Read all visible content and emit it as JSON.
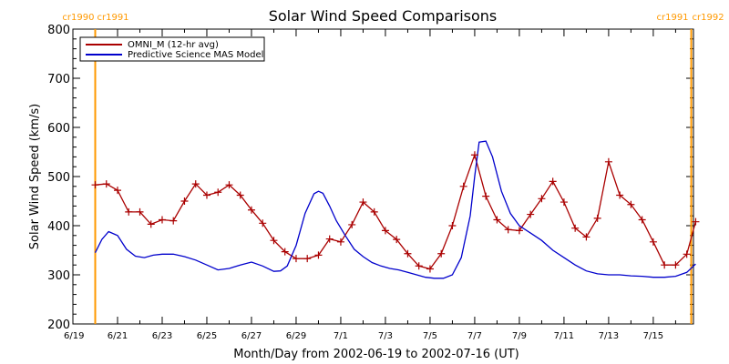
{
  "chart_data": {
    "type": "line",
    "title": "Solar Wind Speed Comparisons",
    "xlabel": "Month/Day from 2002-06-19 to 2002-07-16 (UT)",
    "ylabel": "Solar Wind Speed (km/s)",
    "ylim": [
      200,
      800
    ],
    "xlim": [
      0,
      27.8
    ],
    "yticks": [
      200,
      300,
      400,
      500,
      600,
      700,
      800
    ],
    "xticks": [
      {
        "x": 0,
        "label": "6/19"
      },
      {
        "x": 2,
        "label": "6/21"
      },
      {
        "x": 4,
        "label": "6/23"
      },
      {
        "x": 6,
        "label": "6/25"
      },
      {
        "x": 8,
        "label": "6/27"
      },
      {
        "x": 10,
        "label": "6/29"
      },
      {
        "x": 12,
        "label": "7/1"
      },
      {
        "x": 14,
        "label": "7/3"
      },
      {
        "x": 16,
        "label": "7/5"
      },
      {
        "x": 18,
        "label": "7/7"
      },
      {
        "x": 20,
        "label": "7/9"
      },
      {
        "x": 22,
        "label": "7/11"
      },
      {
        "x": 24,
        "label": "7/13"
      },
      {
        "x": 26,
        "label": "7/15"
      }
    ],
    "legend": "top-left",
    "carrington_markers": [
      {
        "x": 1.0,
        "label_left": "cr1990",
        "label_right": "cr1991",
        "side": "left",
        "color": "#ff9900"
      },
      {
        "x": 27.7,
        "label_left": "cr1991",
        "label_right": "cr1992",
        "side": "right",
        "color": "#ff9900"
      }
    ],
    "series": [
      {
        "name": "OMNI_M (12-hr avg)",
        "color": "#aa0000",
        "marker": "plus",
        "x": [
          1.0,
          1.5,
          2.0,
          2.5,
          3.0,
          3.5,
          4.0,
          4.5,
          5.0,
          5.5,
          6.0,
          6.5,
          7.0,
          7.5,
          8.0,
          8.5,
          9.0,
          9.5,
          10.0,
          10.5,
          11.0,
          11.5,
          12.0,
          12.5,
          13.0,
          13.5,
          14.0,
          14.5,
          15.0,
          15.5,
          16.0,
          16.5,
          17.0,
          17.5,
          18.0,
          18.5,
          19.0,
          19.5,
          20.0,
          20.5,
          21.0,
          21.5,
          22.0,
          22.5,
          23.0,
          23.5,
          24.0,
          24.5,
          25.0,
          25.5,
          26.0,
          26.5,
          27.0,
          27.5,
          27.9
        ],
        "values": [
          483,
          485,
          472,
          428,
          428,
          403,
          412,
          410,
          450,
          485,
          462,
          468,
          483,
          462,
          432,
          405,
          370,
          347,
          333,
          333,
          340,
          373,
          367,
          402,
          448,
          428,
          390,
          372,
          343,
          318,
          312,
          343,
          400,
          480,
          544,
          460,
          412,
          392,
          390,
          423,
          455,
          490,
          448,
          395,
          377,
          415,
          530,
          462,
          443,
          412,
          367,
          320,
          320,
          342,
          408
        ]
      },
      {
        "name": "Predictive Science MAS Model",
        "color": "#0000cc",
        "x": [
          1.0,
          1.3,
          1.6,
          2.0,
          2.4,
          2.8,
          3.2,
          3.6,
          4.0,
          4.5,
          5.0,
          5.5,
          6.0,
          6.5,
          7.0,
          7.5,
          8.0,
          8.5,
          9.0,
          9.3,
          9.6,
          10.0,
          10.4,
          10.8,
          11.0,
          11.2,
          11.5,
          11.8,
          12.2,
          12.6,
          13.0,
          13.4,
          13.8,
          14.2,
          14.6,
          15.0,
          15.4,
          15.8,
          16.2,
          16.6,
          17.0,
          17.4,
          17.8,
          18.0,
          18.2,
          18.5,
          18.8,
          19.2,
          19.6,
          20.0,
          20.5,
          21.0,
          21.5,
          22.0,
          22.5,
          23.0,
          23.5,
          24.0,
          24.5,
          25.0,
          25.5,
          26.0,
          26.5,
          27.0,
          27.5,
          27.9
        ],
        "values": [
          345,
          372,
          388,
          380,
          352,
          338,
          335,
          340,
          342,
          342,
          337,
          330,
          320,
          310,
          313,
          320,
          326,
          318,
          307,
          308,
          318,
          360,
          425,
          465,
          470,
          466,
          440,
          410,
          380,
          352,
          337,
          325,
          318,
          313,
          310,
          305,
          300,
          295,
          293,
          293,
          300,
          335,
          420,
          500,
          570,
          572,
          540,
          470,
          425,
          400,
          385,
          370,
          350,
          335,
          320,
          308,
          302,
          300,
          300,
          298,
          297,
          295,
          295,
          297,
          305,
          322
        ]
      }
    ]
  }
}
